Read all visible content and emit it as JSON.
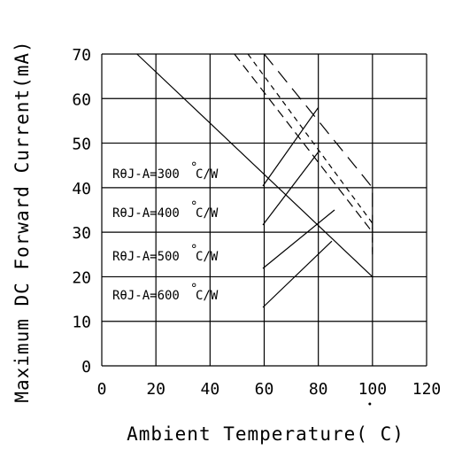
{
  "chart_data": {
    "type": "line",
    "xlabel": "Ambient Temperature( C)",
    "ylabel": "Maximum DC Forward Current(mA)",
    "xlim": [
      0,
      120
    ],
    "ylim": [
      0,
      70
    ],
    "xticks": [
      "0",
      "20",
      "40",
      "60",
      "80",
      "100",
      "120"
    ],
    "yticks": [
      "0",
      "10",
      "20",
      "30",
      "40",
      "50",
      "60",
      "70"
    ],
    "grid": true,
    "series": [
      {
        "name": "RθJ-A=300°C/W",
        "style": "long-dash",
        "x": [
          60,
          100,
          100
        ],
        "y": [
          70,
          40,
          30
        ]
      },
      {
        "name": "RθJ-A=400°C/W",
        "style": "short-dash",
        "x": [
          54,
          100,
          100
        ],
        "y": [
          70,
          32,
          25
        ]
      },
      {
        "name": "RθJ-A=500°C/W",
        "style": "dash",
        "x": [
          49,
          100,
          100
        ],
        "y": [
          70,
          30,
          25
        ]
      },
      {
        "name": "RθJ-A=600°C/W",
        "style": "solid",
        "x": [
          13,
          100
        ],
        "y": [
          70,
          20
        ]
      }
    ],
    "annotations": [
      {
        "label": "RθJ-A=300",
        "unit": "°C/W",
        "target": [
          80,
          58
        ]
      },
      {
        "label": "RθJ-A=400",
        "unit": "°C/W",
        "target": [
          80,
          48
        ]
      },
      {
        "label": "RθJ-A=500",
        "unit": "°C/W",
        "target": [
          86,
          35
        ]
      },
      {
        "label": "RθJ-A=600",
        "unit": "°C/W",
        "target": [
          85,
          28
        ]
      }
    ]
  }
}
